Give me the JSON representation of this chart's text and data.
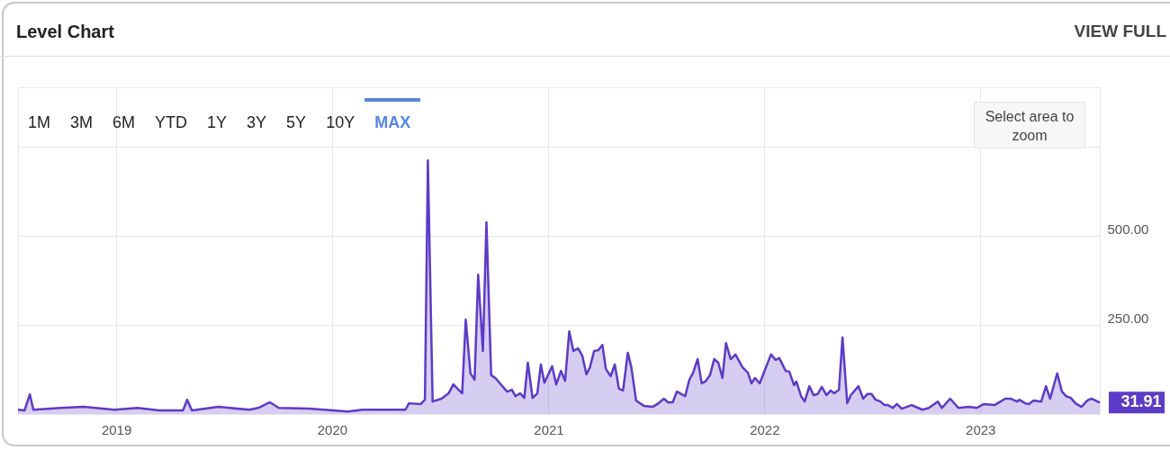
{
  "chart_data": {
    "type": "area",
    "title": "Level Chart",
    "annotations": [
      "1M",
      "3M",
      "6M",
      "YTD",
      "1Y",
      "3Y",
      "5Y",
      "10Y",
      "MAX",
      "Select area to zoom",
      "VIEW FULL",
      {
        "text": "31.91",
        "x": "2023-07-22",
        "y": 31.91
      }
    ],
    "xlim": [
      "2018-07-19",
      "2023-07-22"
    ],
    "xticks": [
      "2019",
      "2020",
      "2021",
      "2022",
      "2023"
    ],
    "ylim": [
      0,
      917
    ],
    "yticks": [
      {
        "value": 250,
        "label": "250.00"
      },
      {
        "value": 500,
        "label": "500.00"
      },
      {
        "value": 750,
        "label": null
      }
    ],
    "grid": true,
    "marker": "none",
    "line_style": "solid",
    "series": [
      {
        "color": "#5c3bc6",
        "x": [
          "2018-07-19",
          "2018-07-30",
          "2018-08-08",
          "2018-08-14",
          "2018-09-29",
          "2018-11-07",
          "2018-12-29",
          "2019-02-06",
          "2019-03-15",
          "2019-04-24",
          "2019-05-01",
          "2019-05-09",
          "2019-06-23",
          "2019-08-14",
          "2019-08-29",
          "2019-09-18",
          "2019-10-03",
          "2019-11-23",
          "2020-01-28",
          "2020-02-21",
          "2020-04-23",
          "2020-05-04",
          "2020-05-10",
          "2020-05-30",
          "2020-06-06",
          "2020-06-11",
          "2020-06-19",
          "2020-07-04",
          "2020-07-16",
          "2020-07-24",
          "2020-08-08",
          "2020-08-14",
          "2020-08-22",
          "2020-08-29",
          "2020-09-04",
          "2020-09-12",
          "2020-09-18",
          "2020-09-26",
          "2020-10-03",
          "2020-10-23",
          "2020-10-31",
          "2020-11-06",
          "2020-11-14",
          "2020-11-21",
          "2020-11-27",
          "2020-12-05",
          "2020-12-13",
          "2020-12-19",
          "2020-12-25",
          "2021-01-07",
          "2021-01-14",
          "2021-01-22",
          "2021-01-29",
          "2021-02-05",
          "2021-02-12",
          "2021-02-20",
          "2021-02-27",
          "2021-03-06",
          "2021-03-12",
          "2021-03-19",
          "2021-03-26",
          "2021-04-02",
          "2021-04-08",
          "2021-04-16",
          "2021-04-23",
          "2021-04-30",
          "2021-05-07",
          "2021-05-15",
          "2021-05-21",
          "2021-05-29",
          "2021-06-11",
          "2021-06-26",
          "2021-07-04",
          "2021-07-15",
          "2021-07-22",
          "2021-07-30",
          "2021-08-06",
          "2021-08-20",
          "2021-08-27",
          "2021-09-02",
          "2021-09-10",
          "2021-09-17",
          "2021-09-23",
          "2021-10-01",
          "2021-10-08",
          "2021-10-15",
          "2021-10-22",
          "2021-10-28",
          "2021-11-05",
          "2021-11-13",
          "2021-11-25",
          "2021-12-04",
          "2021-12-10",
          "2021-12-16",
          "2021-12-24",
          "2022-01-12",
          "2022-01-20",
          "2022-01-26",
          "2022-02-06",
          "2022-02-12",
          "2022-02-20",
          "2022-02-24",
          "2022-03-04",
          "2022-03-10",
          "2022-03-18",
          "2022-03-25",
          "2022-04-01",
          "2022-04-08",
          "2022-04-16",
          "2022-04-23",
          "2022-04-29",
          "2022-05-07",
          "2022-05-13",
          "2022-05-21",
          "2022-05-27",
          "2022-06-09",
          "2022-06-17",
          "2022-06-24",
          "2022-07-01",
          "2022-07-08",
          "2022-07-16",
          "2022-07-23",
          "2022-07-29",
          "2022-08-06",
          "2022-08-13",
          "2022-08-21",
          "2022-09-07",
          "2022-09-18",
          "2022-09-25",
          "2022-10-06",
          "2022-10-21",
          "2022-10-28",
          "2022-11-11",
          "2022-11-25",
          "2022-12-13",
          "2022-12-26",
          "2023-01-07",
          "2023-01-25",
          "2023-02-12",
          "2023-02-21",
          "2023-03-04",
          "2023-03-08",
          "2023-03-18",
          "2023-03-24",
          "2023-04-01",
          "2023-04-14",
          "2023-04-22",
          "2023-04-29",
          "2023-05-11",
          "2023-05-19",
          "2023-05-26",
          "2023-06-03",
          "2023-06-11",
          "2023-06-21",
          "2023-07-01",
          "2023-07-08",
          "2023-07-22"
        ],
        "values": [
          12,
          10,
          55,
          12,
          17,
          20,
          12,
          17,
          10,
          10,
          40,
          10,
          20,
          12,
          17,
          33,
          17,
          15,
          7,
          12,
          12,
          12,
          30,
          28,
          40,
          712,
          35,
          43,
          58,
          83,
          58,
          265,
          114,
          96,
          391,
          177,
          538,
          109,
          101,
          63,
          68,
          50,
          58,
          45,
          144,
          45,
          58,
          139,
          88,
          134,
          83,
          121,
          93,
          232,
          177,
          184,
          164,
          111,
          131,
          177,
          179,
          194,
          126,
          106,
          139,
          71,
          66,
          172,
          131,
          38,
          23,
          20,
          28,
          43,
          33,
          33,
          63,
          50,
          96,
          114,
          154,
          86,
          91,
          109,
          154,
          144,
          101,
          199,
          154,
          167,
          131,
          116,
          86,
          101,
          86,
          167,
          152,
          157,
          121,
          119,
          81,
          91,
          50,
          35,
          78,
          53,
          56,
          76,
          53,
          66,
          58,
          68,
          215,
          30,
          53,
          78,
          43,
          56,
          56,
          40,
          35,
          25,
          25,
          17,
          28,
          15,
          25,
          17,
          12,
          17,
          35,
          17,
          43,
          17,
          20,
          17,
          28,
          25,
          43,
          43,
          35,
          40,
          30,
          28,
          38,
          35,
          78,
          43,
          114,
          63,
          50,
          45,
          30,
          20,
          38,
          43,
          31.91
        ]
      }
    ]
  }
}
